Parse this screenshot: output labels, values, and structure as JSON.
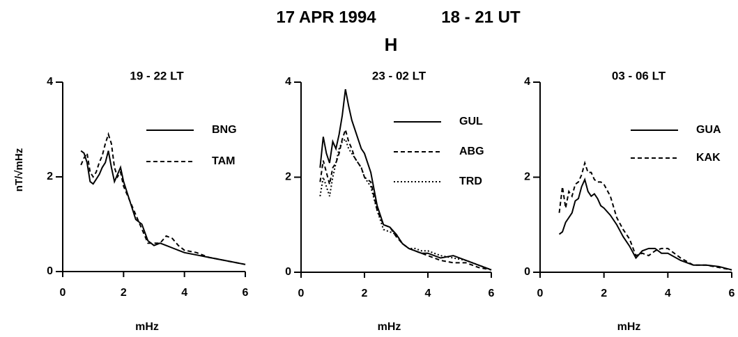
{
  "title": "17 APR 1994",
  "time": "18 - 21 UT",
  "component": "H",
  "chart_data": [
    {
      "type": "line",
      "title": "19 - 22 LT",
      "ylabel": "nT/√mHz",
      "xlabel": "mHz",
      "xlim": [
        0,
        6
      ],
      "xticks": [
        0,
        2,
        4,
        6
      ],
      "ylim": [
        0,
        4
      ],
      "yticks": [
        0,
        2,
        4
      ],
      "x": [
        0.6,
        0.7,
        0.8,
        0.9,
        1.0,
        1.1,
        1.2,
        1.3,
        1.4,
        1.5,
        1.6,
        1.7,
        1.8,
        1.9,
        2.0,
        2.2,
        2.4,
        2.6,
        2.8,
        3.0,
        3.2,
        3.4,
        3.6,
        3.8,
        4.0,
        4.4,
        4.8,
        5.2,
        5.6,
        6.0
      ],
      "series": [
        {
          "name": "BNG",
          "color": "#000000",
          "dash": "solid",
          "values": [
            2.55,
            2.5,
            2.3,
            1.9,
            1.85,
            1.95,
            2.05,
            2.2,
            2.3,
            2.55,
            2.2,
            1.9,
            2.05,
            2.2,
            1.9,
            1.5,
            1.1,
            1.0,
            0.65,
            0.55,
            0.6,
            0.55,
            0.5,
            0.45,
            0.4,
            0.35,
            0.3,
            0.25,
            0.2,
            0.15
          ]
        },
        {
          "name": "TAM",
          "color": "#000000",
          "dash": "dashed",
          "values": [
            2.25,
            2.4,
            2.5,
            2.1,
            2.0,
            2.1,
            2.3,
            2.45,
            2.7,
            2.9,
            2.7,
            2.2,
            2.0,
            2.1,
            1.8,
            1.5,
            1.2,
            0.9,
            0.6,
            0.6,
            0.6,
            0.75,
            0.7,
            0.55,
            0.45,
            0.4,
            0.3,
            0.25,
            0.2,
            0.15
          ]
        }
      ]
    },
    {
      "type": "line",
      "title": "23 - 02 LT",
      "xlabel": "mHz",
      "xlim": [
        0,
        6
      ],
      "xticks": [
        0,
        2,
        4,
        6
      ],
      "ylim": [
        0,
        4
      ],
      "yticks": [
        0,
        2,
        4
      ],
      "x": [
        0.6,
        0.7,
        0.8,
        0.9,
        1.0,
        1.1,
        1.2,
        1.3,
        1.4,
        1.5,
        1.6,
        1.7,
        1.8,
        1.9,
        2.0,
        2.2,
        2.4,
        2.6,
        2.8,
        3.0,
        3.2,
        3.4,
        3.6,
        3.8,
        4.0,
        4.4,
        4.8,
        5.2,
        5.6,
        6.0
      ],
      "series": [
        {
          "name": "GUL",
          "color": "#000000",
          "dash": "solid",
          "values": [
            2.2,
            2.85,
            2.5,
            2.3,
            2.75,
            2.6,
            2.9,
            3.3,
            3.85,
            3.5,
            3.2,
            3.0,
            2.8,
            2.6,
            2.5,
            2.1,
            1.4,
            1.0,
            0.95,
            0.8,
            0.6,
            0.5,
            0.45,
            0.4,
            0.4,
            0.3,
            0.35,
            0.25,
            0.15,
            0.05
          ]
        },
        {
          "name": "ABG",
          "color": "#000000",
          "dash": "dashed",
          "values": [
            1.9,
            2.35,
            2.1,
            1.85,
            2.2,
            2.3,
            2.5,
            2.8,
            3.0,
            2.75,
            2.6,
            2.4,
            2.3,
            2.2,
            2.0,
            1.9,
            1.3,
            1.0,
            0.95,
            0.75,
            0.6,
            0.5,
            0.45,
            0.4,
            0.35,
            0.25,
            0.2,
            0.2,
            0.1,
            0.05
          ]
        },
        {
          "name": "TRD",
          "color": "#000000",
          "dash": "dotted",
          "values": [
            1.6,
            2.0,
            1.8,
            1.6,
            2.0,
            2.3,
            2.6,
            2.75,
            2.8,
            2.6,
            2.5,
            2.4,
            2.3,
            2.2,
            2.0,
            1.8,
            1.3,
            0.9,
            0.85,
            0.8,
            0.6,
            0.5,
            0.5,
            0.45,
            0.45,
            0.35,
            0.3,
            0.25,
            0.15,
            0.05
          ]
        }
      ]
    },
    {
      "type": "line",
      "title": "03 - 06 LT",
      "xlabel": "mHz",
      "xlim": [
        0,
        6
      ],
      "xticks": [
        0,
        2,
        4,
        6
      ],
      "ylim": [
        0,
        4
      ],
      "yticks": [
        0,
        2,
        4
      ],
      "x": [
        0.6,
        0.7,
        0.8,
        0.9,
        1.0,
        1.1,
        1.2,
        1.3,
        1.4,
        1.5,
        1.6,
        1.7,
        1.8,
        1.9,
        2.0,
        2.2,
        2.4,
        2.6,
        2.8,
        3.0,
        3.2,
        3.4,
        3.6,
        3.8,
        4.0,
        4.4,
        4.8,
        5.2,
        5.6,
        6.0
      ],
      "series": [
        {
          "name": "GUA",
          "color": "#000000",
          "dash": "solid",
          "values": [
            0.8,
            0.85,
            1.05,
            1.15,
            1.25,
            1.5,
            1.55,
            1.8,
            1.95,
            1.7,
            1.6,
            1.65,
            1.55,
            1.4,
            1.35,
            1.2,
            1.0,
            0.75,
            0.55,
            0.3,
            0.45,
            0.5,
            0.5,
            0.4,
            0.4,
            0.25,
            0.15,
            0.15,
            0.12,
            0.05
          ]
        },
        {
          "name": "KAK",
          "color": "#000000",
          "dash": "dashed",
          "values": [
            1.25,
            1.8,
            1.35,
            1.7,
            1.6,
            1.85,
            1.9,
            2.05,
            2.3,
            2.1,
            2.1,
            1.95,
            1.9,
            1.9,
            1.85,
            1.6,
            1.15,
            0.9,
            0.7,
            0.35,
            0.4,
            0.35,
            0.45,
            0.5,
            0.5,
            0.3,
            0.15,
            0.15,
            0.1,
            0.05
          ]
        }
      ]
    }
  ]
}
